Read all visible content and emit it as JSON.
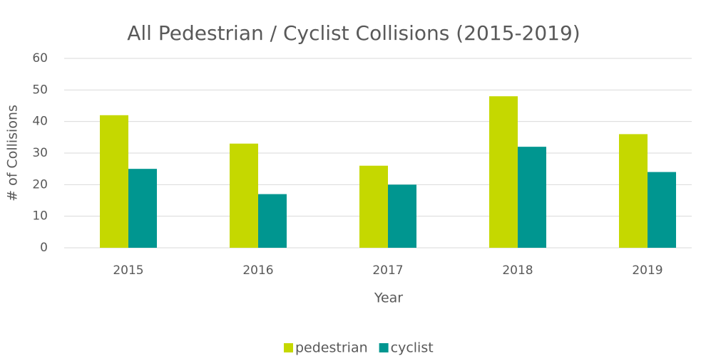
{
  "chart_data": {
    "type": "bar",
    "title": "All Pedestrian / Cyclist Collisions (2015-2019)",
    "x_label": "Year",
    "y_label": "# of Collisions",
    "categories": [
      "2015",
      "2016",
      "2017",
      "2018",
      "2019"
    ],
    "series": [
      {
        "name": "pedestrian",
        "color": "#c5d800",
        "values": [
          42,
          33,
          26,
          48,
          36
        ]
      },
      {
        "name": "cyclist",
        "color": "#009690",
        "values": [
          25,
          17,
          20,
          32,
          24
        ]
      }
    ],
    "ylim": [
      0,
      60
    ],
    "yticks": [
      0,
      10,
      20,
      30,
      40,
      50,
      60
    ],
    "grid": true,
    "legend": "bottom"
  }
}
